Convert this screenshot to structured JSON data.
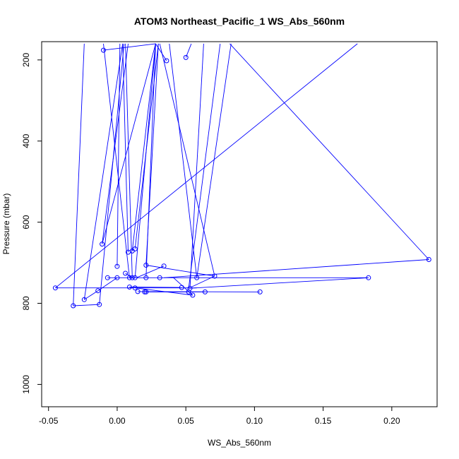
{
  "chart_data": {
    "type": "line",
    "title": "ATOM3 Northeast_Pacific_1 WS_Abs_560nm",
    "xlabel": "WS_Abs_560nm",
    "ylabel": "Pressure (mbar)",
    "xlim": [
      -0.055,
      0.233
    ],
    "ylim": [
      1055,
      155
    ],
    "y_reversed": true,
    "x_ticks": [
      -0.05,
      0.0,
      0.05,
      0.1,
      0.15,
      0.2
    ],
    "x_tick_labels": [
      "-0.05",
      "0.00",
      "0.05",
      "0.10",
      "0.15",
      "0.20"
    ],
    "y_ticks": [
      200,
      400,
      600,
      800,
      1000
    ],
    "y_tick_labels": [
      "200",
      "400",
      "600",
      "800",
      "1000"
    ],
    "grid": false,
    "series_color": "#0000ff",
    "marker": "open-circle",
    "points": [
      {
        "x": -0.01,
        "y": 176
      },
      {
        "x": 0.036,
        "y": 202
      },
      {
        "x": 0.05,
        "y": 194
      },
      {
        "x": -0.011,
        "y": 654
      },
      {
        "x": 0.008,
        "y": 674
      },
      {
        "x": 0.011,
        "y": 671
      },
      {
        "x": 0.013,
        "y": 666
      },
      {
        "x": 0.034,
        "y": 708
      },
      {
        "x": 0.021,
        "y": 706
      },
      {
        "x": 0.0,
        "y": 709
      },
      {
        "x": 0.006,
        "y": 726
      },
      {
        "x": 0.071,
        "y": 733
      },
      {
        "x": 0.227,
        "y": 692
      },
      {
        "x": 0.183,
        "y": 737
      },
      {
        "x": -0.007,
        "y": 737
      },
      {
        "x": 0.0,
        "y": 737
      },
      {
        "x": 0.009,
        "y": 737
      },
      {
        "x": 0.011,
        "y": 737
      },
      {
        "x": 0.013,
        "y": 737
      },
      {
        "x": 0.021,
        "y": 737
      },
      {
        "x": 0.031,
        "y": 737
      },
      {
        "x": 0.058,
        "y": 737
      },
      {
        "x": -0.045,
        "y": 762
      },
      {
        "x": 0.009,
        "y": 760
      },
      {
        "x": 0.013,
        "y": 762
      },
      {
        "x": 0.047,
        "y": 761
      },
      {
        "x": 0.053,
        "y": 763
      },
      {
        "x": -0.014,
        "y": 769
      },
      {
        "x": 0.015,
        "y": 771
      },
      {
        "x": 0.02,
        "y": 772
      },
      {
        "x": 0.021,
        "y": 772
      },
      {
        "x": 0.052,
        "y": 772
      },
      {
        "x": 0.064,
        "y": 772
      },
      {
        "x": 0.104,
        "y": 772
      },
      {
        "x": 0.055,
        "y": 780
      },
      {
        "x": -0.024,
        "y": 791
      },
      {
        "x": -0.013,
        "y": 803
      },
      {
        "x": -0.032,
        "y": 806
      }
    ],
    "segments": [
      [
        [
          -0.01,
          176
        ],
        [
          0.028,
          160
        ]
      ],
      [
        [
          0.036,
          202
        ],
        [
          0.028,
          160
        ]
      ],
      [
        [
          0.05,
          194
        ],
        [
          0.054,
          160
        ]
      ],
      [
        [
          -0.045,
          762
        ],
        [
          0.175,
          160
        ]
      ],
      [
        [
          -0.045,
          762
        ],
        [
          0.058,
          762
        ]
      ],
      [
        [
          0.227,
          692
        ],
        [
          0.082,
          160
        ]
      ],
      [
        [
          0.227,
          692
        ],
        [
          0.034,
          737
        ]
      ],
      [
        [
          0.183,
          737
        ],
        [
          0.028,
          737
        ]
      ],
      [
        [
          0.183,
          737
        ],
        [
          0.052,
          763
        ]
      ],
      [
        [
          -0.011,
          654
        ],
        [
          0.008,
          160
        ]
      ],
      [
        [
          -0.011,
          654
        ],
        [
          0.028,
          160
        ]
      ],
      [
        [
          0.008,
          674
        ],
        [
          0.004,
          160
        ]
      ],
      [
        [
          0.011,
          671
        ],
        [
          0.028,
          160
        ]
      ],
      [
        [
          0.013,
          666
        ],
        [
          0.03,
          160
        ]
      ],
      [
        [
          -0.032,
          806
        ],
        [
          -0.024,
          160
        ]
      ],
      [
        [
          -0.032,
          806
        ],
        [
          -0.013,
          803
        ]
      ],
      [
        [
          -0.024,
          791
        ],
        [
          0.004,
          160
        ]
      ],
      [
        [
          -0.024,
          791
        ],
        [
          -0.014,
          769
        ]
      ],
      [
        [
          -0.013,
          803
        ],
        [
          0.005,
          160
        ]
      ],
      [
        [
          -0.014,
          769
        ],
        [
          0.0,
          737
        ]
      ],
      [
        [
          0.0,
          709
        ],
        [
          0.002,
          160
        ]
      ],
      [
        [
          0.006,
          726
        ],
        [
          0.011,
          737
        ]
      ],
      [
        [
          -0.007,
          737
        ],
        [
          0.028,
          737
        ]
      ],
      [
        [
          0.021,
          706
        ],
        [
          0.071,
          733
        ]
      ],
      [
        [
          0.021,
          706
        ],
        [
          0.03,
          160
        ]
      ],
      [
        [
          0.034,
          708
        ],
        [
          0.014,
          737
        ]
      ],
      [
        [
          0.071,
          733
        ],
        [
          0.031,
          160
        ]
      ],
      [
        [
          0.071,
          733
        ],
        [
          0.054,
          760
        ]
      ],
      [
        [
          0.052,
          763
        ],
        [
          0.075,
          160
        ]
      ],
      [
        [
          0.053,
          763
        ],
        [
          0.063,
          160
        ]
      ],
      [
        [
          0.055,
          780
        ],
        [
          0.041,
          737
        ]
      ],
      [
        [
          0.055,
          780
        ],
        [
          0.013,
          762
        ]
      ],
      [
        [
          0.058,
          737
        ],
        [
          0.083,
          160
        ]
      ],
      [
        [
          0.009,
          760
        ],
        [
          0.047,
          761
        ]
      ],
      [
        [
          0.015,
          771
        ],
        [
          0.104,
          772
        ]
      ],
      [
        [
          0.02,
          772
        ],
        [
          0.064,
          772
        ]
      ],
      [
        [
          0.058,
          737
        ],
        [
          0.038,
          160
        ]
      ],
      [
        [
          0.013,
          737
        ],
        [
          0.028,
          160
        ]
      ],
      [
        [
          0.011,
          737
        ],
        [
          0.006,
          160
        ]
      ],
      [
        [
          0.021,
          737
        ],
        [
          0.028,
          160
        ]
      ],
      [
        [
          0.009,
          737
        ],
        [
          -0.01,
          160
        ]
      ]
    ]
  }
}
